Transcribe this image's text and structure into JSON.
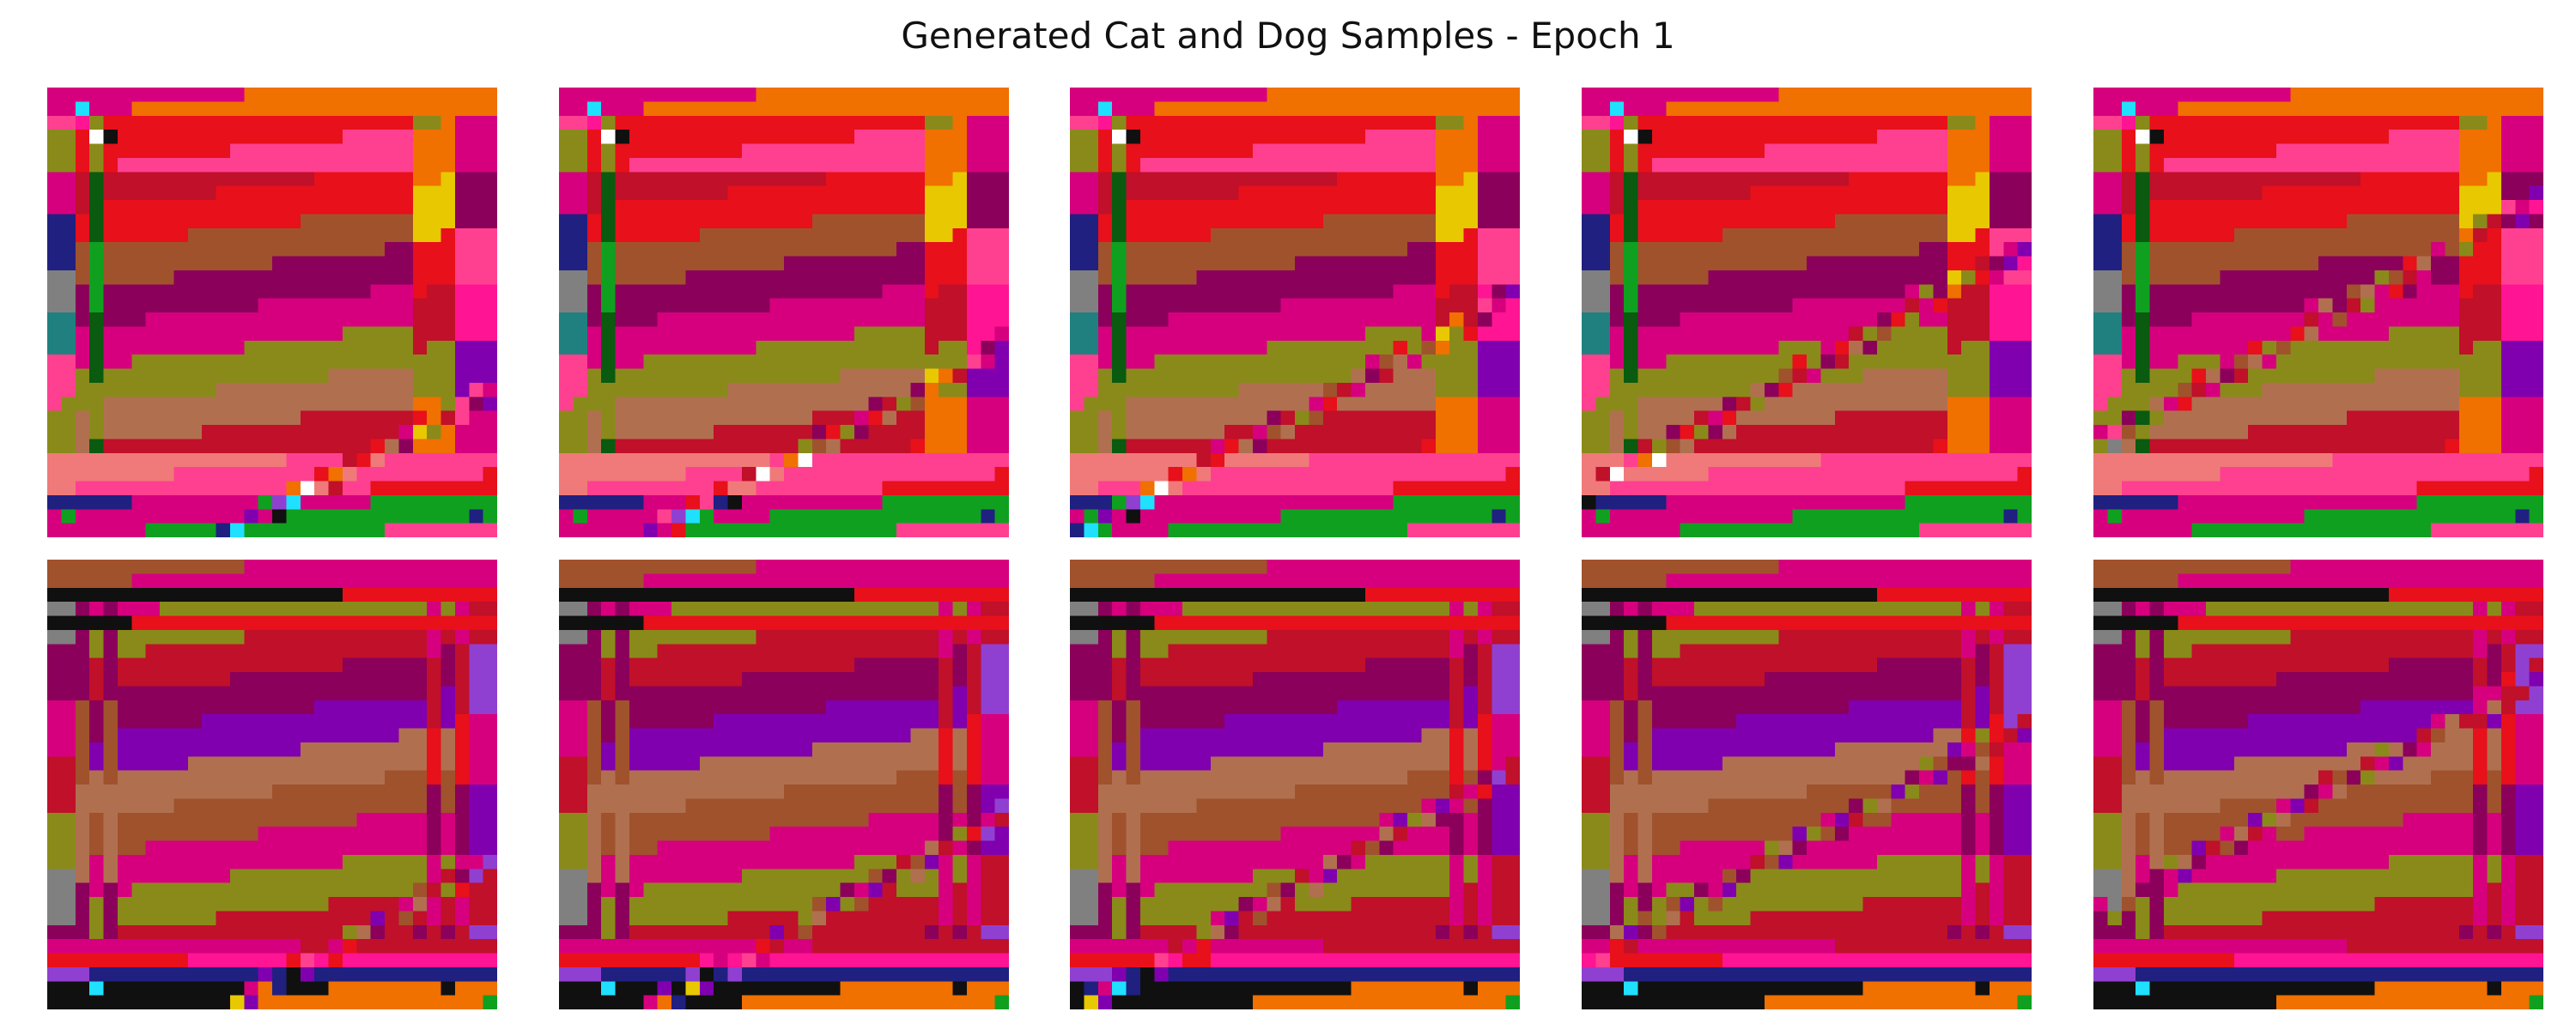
{
  "figure": {
    "title": "Generated Cat and Dog Samples - Epoch 1"
  },
  "samples": {
    "rows": 2,
    "cols": 5,
    "pixel_grid": 32,
    "items": [
      {
        "row": 0,
        "pattern": "pattern-a",
        "variant": 0
      },
      {
        "row": 0,
        "pattern": "pattern-a",
        "variant": 1
      },
      {
        "row": 0,
        "pattern": "pattern-a",
        "variant": 2
      },
      {
        "row": 0,
        "pattern": "pattern-a",
        "variant": 3
      },
      {
        "row": 0,
        "pattern": "pattern-a",
        "variant": 4
      },
      {
        "row": 1,
        "pattern": "pattern-b",
        "variant": 0
      },
      {
        "row": 1,
        "pattern": "pattern-b",
        "variant": 1
      },
      {
        "row": 1,
        "pattern": "pattern-b",
        "variant": 2
      },
      {
        "row": 1,
        "pattern": "pattern-b",
        "variant": 3
      },
      {
        "row": 1,
        "pattern": "pattern-b",
        "variant": 4
      }
    ]
  },
  "colors": {
    "magenta": "#d6007e",
    "dark_magenta": "#8b005a",
    "crimson": "#c0102a",
    "red": "#e8101a",
    "brown": "#a0522d",
    "olive": "#8a8a1a",
    "orange": "#f07000",
    "yellow": "#e8c800",
    "purple": "#8000b0",
    "violet": "#9040d0",
    "pink": "#ff4090",
    "hot_pink": "#ff1493",
    "green": "#10a020",
    "dark_green": "#0a5a10",
    "navy": "#202080",
    "teal": "#208080",
    "cyan": "#20e0ff",
    "black": "#101010",
    "white": "#ffffff",
    "salmon": "#f07a7a",
    "gray": "#808080",
    "tan": "#b07050"
  }
}
